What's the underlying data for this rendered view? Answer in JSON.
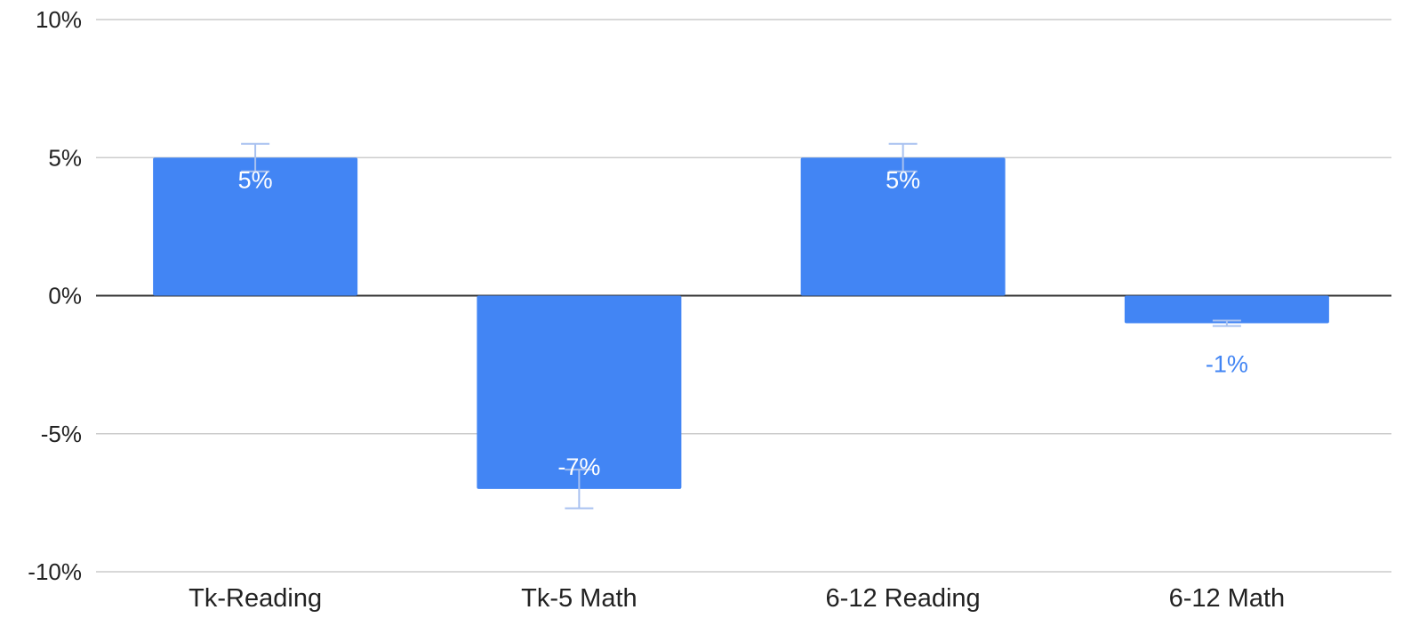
{
  "chart_data": {
    "type": "bar",
    "categories": [
      "Tk-Reading",
      "Tk-5 Math",
      "6-12 Reading",
      "6-12 Math"
    ],
    "values": [
      5,
      -7,
      5,
      -1
    ],
    "error_bars": [
      {
        "low": 4.5,
        "high": 5.5
      },
      {
        "low": -7.7,
        "high": -6.3
      },
      {
        "low": 4.5,
        "high": 5.5
      },
      {
        "low": -1.1,
        "high": -0.9
      }
    ],
    "data_labels": [
      "5%",
      "-7%",
      "5%",
      "-1%"
    ],
    "title": "",
    "xlabel": "",
    "ylabel": "",
    "ylim": [
      -10,
      10
    ],
    "yticks": [
      10,
      5,
      0,
      -5,
      -10
    ],
    "ytick_labels": [
      "10%",
      "5%",
      "0%",
      "-5%",
      "-10%"
    ],
    "grid": true,
    "legend": "none",
    "colors": {
      "bar": "#4285f4",
      "error_bar": "#a8c1f0",
      "grid": "#cccccc",
      "zero_line": "#333333",
      "label_inside": "#ffffff",
      "label_outside": "#4285f4"
    }
  }
}
